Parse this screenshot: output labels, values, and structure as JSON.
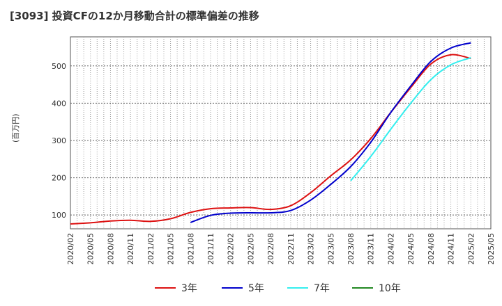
{
  "title": "[3093]  投資CFの12か月移動合計の標準偏差の推移",
  "ylabel": "(百万円)",
  "chart_data": {
    "type": "line",
    "title": "[3093]  投資CFの12か月移動合計の標準偏差の推移",
    "ylabel": "(百万円)",
    "xlabel": "",
    "x_ticks": [
      "2020/02",
      "2020/05",
      "2020/08",
      "2020/11",
      "2021/02",
      "2021/05",
      "2021/08",
      "2021/11",
      "2022/02",
      "2022/05",
      "2022/08",
      "2022/11",
      "2023/02",
      "2023/05",
      "2023/08",
      "2023/11",
      "2024/02",
      "2024/05",
      "2024/08",
      "2024/11",
      "2025/02",
      "2025/05"
    ],
    "y_ticks": [
      100,
      200,
      300,
      400,
      500
    ],
    "ylim": [
      63,
      578
    ],
    "grid": true,
    "legend_position": "bottom",
    "series": [
      {
        "name": "3年",
        "color": "#dd1111",
        "x": [
          "2020/02",
          "2020/05",
          "2020/08",
          "2020/11",
          "2021/02",
          "2021/05",
          "2021/08",
          "2021/11",
          "2022/02",
          "2022/05",
          "2022/08",
          "2022/11",
          "2023/02",
          "2023/05",
          "2023/08",
          "2023/11",
          "2024/02",
          "2024/05",
          "2024/08",
          "2024/11",
          "2025/02"
        ],
        "values": [
          76,
          79,
          84,
          86,
          83,
          90,
          107,
          117,
          119,
          120,
          115,
          125,
          160,
          205,
          248,
          305,
          375,
          442,
          505,
          530,
          520
        ]
      },
      {
        "name": "5年",
        "color": "#0000cc",
        "x": [
          "2021/08",
          "2021/11",
          "2022/02",
          "2022/05",
          "2022/08",
          "2022/11",
          "2023/02",
          "2023/05",
          "2023/08",
          "2023/11",
          "2024/02",
          "2024/05",
          "2024/08",
          "2024/11",
          "2025/02"
        ],
        "values": [
          80,
          99,
          105,
          106,
          106,
          112,
          140,
          182,
          230,
          295,
          375,
          446,
          512,
          548,
          562
        ]
      },
      {
        "name": "7年",
        "color": "#33eeee",
        "x": [
          "2023/08",
          "2023/11",
          "2024/02",
          "2024/05",
          "2024/08",
          "2024/11",
          "2025/02"
        ],
        "values": [
          192,
          257,
          330,
          400,
          463,
          503,
          522
        ]
      },
      {
        "name": "10年",
        "color": "#228822",
        "x": [],
        "values": []
      }
    ]
  }
}
